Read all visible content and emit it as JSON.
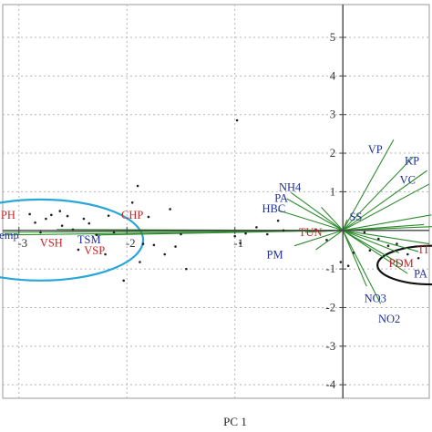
{
  "chart_data": {
    "type": "scatter",
    "title": "",
    "xlabel": "PC 1",
    "ylabel": "",
    "xlim": [
      -3.15,
      0.8
    ],
    "ylim": [
      -4.35,
      5.85
    ],
    "grid": true,
    "x_ticks": [
      -3,
      -2,
      -1
    ],
    "y_ticks": [
      -4,
      -3,
      -2,
      -1,
      1,
      2,
      3,
      4,
      5
    ],
    "series": [
      {
        "values": [
          {
            "label": "VP",
            "x": 0.3,
            "y": 2.1,
            "group": "blue"
          },
          {
            "label": "KP",
            "x": 0.64,
            "y": 1.8,
            "group": "blue"
          },
          {
            "label": "VC",
            "x": 0.6,
            "y": 1.3,
            "group": "blue"
          },
          {
            "label": "NH4",
            "x": -0.49,
            "y": 1.12,
            "group": "blue"
          },
          {
            "label": "PA",
            "x": -0.57,
            "y": 0.83,
            "group": "blue"
          },
          {
            "label": "HBC",
            "x": -0.64,
            "y": 0.56,
            "group": "blue"
          },
          {
            "label": "SS",
            "x": 0.12,
            "y": 0.35,
            "group": "blue"
          },
          {
            "label": "PM",
            "x": -0.63,
            "y": -0.63,
            "group": "blue"
          },
          {
            "label": "NO3",
            "x": 0.3,
            "y": -1.77,
            "group": "blue"
          },
          {
            "label": "NO2",
            "x": 0.43,
            "y": -2.3,
            "group": "blue"
          },
          {
            "label": "PA",
            "x": 0.72,
            "y": -1.13,
            "group": "blue"
          },
          {
            "label": "TSM",
            "x": -2.35,
            "y": -0.24,
            "group": "blue"
          },
          {
            "label": "Temp",
            "x": -3.12,
            "y": -0.12,
            "group": "blue"
          },
          {
            "label": "TUN",
            "x": -0.3,
            "y": -0.05,
            "group": "red"
          },
          {
            "label": "PDM",
            "x": 0.54,
            "y": -0.85,
            "group": "red"
          },
          {
            "label": "TI",
            "x": 0.74,
            "y": -0.5,
            "group": "red"
          },
          {
            "label": "CHP",
            "x": -1.95,
            "y": 0.4,
            "group": "red"
          },
          {
            "label": "PH",
            "x": -3.1,
            "y": 0.4,
            "group": "red"
          },
          {
            "label": "VSH",
            "x": -2.7,
            "y": -0.33,
            "group": "red"
          },
          {
            "label": "VSP",
            "x": -2.3,
            "y": -0.52,
            "group": "red"
          }
        ]
      }
    ],
    "score_points": [
      [
        -2.9,
        0.42
      ],
      [
        -2.85,
        0.2
      ],
      [
        -2.8,
        -0.05
      ],
      [
        -2.75,
        0.3
      ],
      [
        -2.7,
        0.4
      ],
      [
        -2.62,
        0.5
      ],
      [
        -2.6,
        0.12
      ],
      [
        -2.55,
        0.37
      ],
      [
        -2.5,
        0.02
      ],
      [
        -2.45,
        -0.5
      ],
      [
        -2.4,
        0.3
      ],
      [
        -2.35,
        0.18
      ],
      [
        -2.28,
        -0.12
      ],
      [
        -2.2,
        -0.62
      ],
      [
        -2.17,
        0.38
      ],
      [
        -2.12,
        -0.05
      ],
      [
        -2.03,
        -1.3
      ],
      [
        -1.95,
        0.72
      ],
      [
        -1.9,
        1.15
      ],
      [
        -1.88,
        -0.82
      ],
      [
        -1.85,
        -0.35
      ],
      [
        -1.8,
        0.35
      ],
      [
        -1.75,
        -0.38
      ],
      [
        -1.65,
        -0.62
      ],
      [
        -1.6,
        0.55
      ],
      [
        -1.55,
        -0.42
      ],
      [
        -1.5,
        -0.1
      ],
      [
        -1.45,
        -1.0
      ],
      [
        -1.0,
        -0.15
      ],
      [
        -0.95,
        -0.33
      ],
      [
        -0.9,
        -0.08
      ],
      [
        -0.8,
        0.08
      ],
      [
        -0.7,
        -0.1
      ],
      [
        -0.6,
        0.25
      ],
      [
        -0.55,
        0.0
      ],
      [
        -0.98,
        2.85
      ],
      [
        -0.25,
        0.02
      ],
      [
        -0.15,
        -0.25
      ],
      [
        -0.02,
        -0.82
      ],
      [
        0.05,
        -0.92
      ],
      [
        0.1,
        -0.58
      ],
      [
        0.2,
        -0.05
      ],
      [
        0.25,
        -0.52
      ],
      [
        0.33,
        -0.22
      ],
      [
        0.42,
        -0.4
      ],
      [
        0.5,
        -0.35
      ],
      [
        0.6,
        -0.62
      ],
      [
        0.7,
        -0.72
      ]
    ],
    "loadings": [
      {
        "x": 0.47,
        "y": 2.35
      },
      {
        "x": 0.65,
        "y": 1.9
      },
      {
        "x": 0.78,
        "y": 1.55
      },
      {
        "x": 0.8,
        "y": 1.2
      },
      {
        "x": 0.82,
        "y": 0.4
      },
      {
        "x": 0.85,
        "y": 0.1
      },
      {
        "x": -0.48,
        "y": 0.98
      },
      {
        "x": -0.52,
        "y": 0.82
      },
      {
        "x": -0.6,
        "y": 0.52
      },
      {
        "x": -0.35,
        "y": -0.05
      },
      {
        "x": -0.45,
        "y": -0.4
      },
      {
        "x": 0.04,
        "y": 0.28
      },
      {
        "x": 0.22,
        "y": -1.45
      },
      {
        "x": 0.35,
        "y": -1.9
      },
      {
        "x": 0.52,
        "y": -0.58
      },
      {
        "x": 0.55,
        "y": -0.9
      },
      {
        "x": 0.6,
        "y": -1.12
      },
      {
        "x": 0.7,
        "y": -0.55
      },
      {
        "x": 0.8,
        "y": -0.35
      },
      {
        "x": 0.75,
        "y": 0.15
      },
      {
        "x": -2.65,
        "y": 0.02
      },
      {
        "x": -3.15,
        "y": -0.05
      },
      {
        "x": -3.15,
        "y": -0.12
      },
      {
        "x": -2.3,
        "y": -0.12
      },
      {
        "x": -0.25,
        "y": -0.5
      },
      {
        "x": -0.2,
        "y": 0.6
      }
    ],
    "ellipses": [
      {
        "cx": -2.8,
        "cy": -0.25,
        "rx": 0.95,
        "ry": 1.05,
        "color": "#2aa7d6"
      },
      {
        "cx": 0.82,
        "cy": -0.9,
        "rx": 0.5,
        "ry": 0.5,
        "color": "#111111"
      }
    ]
  }
}
